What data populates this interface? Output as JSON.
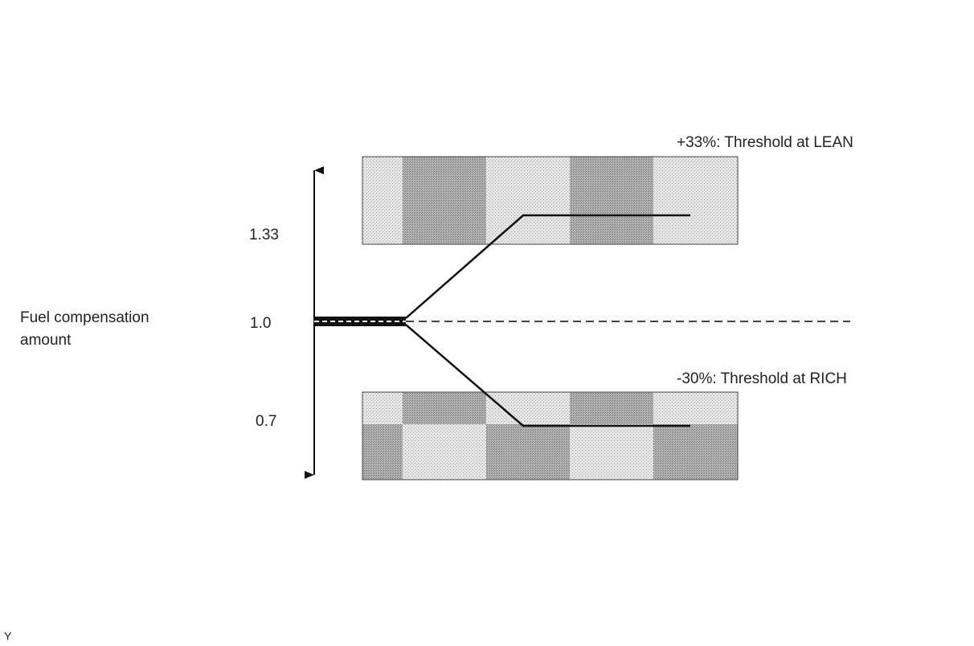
{
  "axis_label": {
    "lines": [
      "Fuel compensation",
      "amount"
    ]
  },
  "levels": [
    "1.33",
    "1.0",
    "0.7"
  ],
  "annotations": {
    "lean": "+33%: Threshold at LEAN",
    "rich": "-30%: Threshold at RICH"
  },
  "corner_mark": "Y"
}
